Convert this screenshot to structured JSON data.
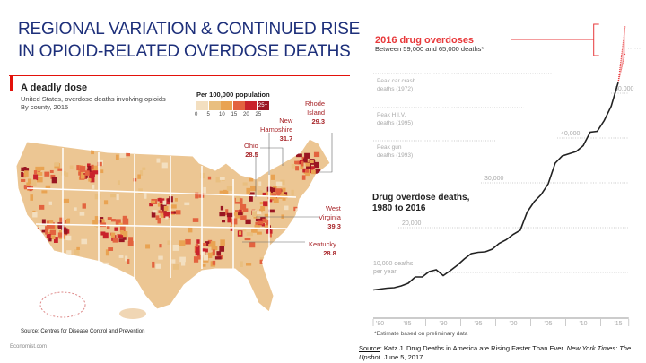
{
  "slide": {
    "title_line1": "REGIONAL VARIATION & CONTINUED RISE",
    "title_line2": "IN OPIOID-RELATED OVERDOSE DEATHS",
    "title_color": "#1d2f7a"
  },
  "map_panel": {
    "title": "A deadly dose",
    "subtitle_line1": "United States, overdose deaths involving opioids",
    "subtitle_line2": "By county, 2015",
    "legend_title": "Per 100,000 population",
    "legend_ticks": [
      "0",
      "5",
      "10",
      "15",
      "20",
      "25"
    ],
    "legend_top_label": "25+",
    "legend_colors": [
      "#f3dfc0",
      "#e9bf80",
      "#e9a352",
      "#e3633f",
      "#c9222b",
      "#9a1622"
    ],
    "callouts": [
      {
        "state_line1": "Rhode",
        "state_line2": "Island",
        "value": "29.3"
      },
      {
        "state_line1": "New",
        "state_line2": "Hampshire",
        "value": "31.7"
      },
      {
        "state_line1": "Ohio",
        "state_line2": "",
        "value": "28.5"
      },
      {
        "state_line1": "West",
        "state_line2": "Virginia",
        "value": "39.3"
      },
      {
        "state_line1": "Kentucky",
        "state_line2": "",
        "value": "28.8"
      }
    ],
    "source": "Source: Centres for Disease Control and Prevention",
    "brand": "Economist.com"
  },
  "nyt_panel": {
    "highlight_title": "2016 drug overdoses",
    "highlight_sub": "Between 59,000 and 65,000 deaths*",
    "main_title_line1": "Drug overdose deaths,",
    "main_title_line2": "1980 to 2016",
    "reference_lines": [
      {
        "label_line1": "Peak car crash",
        "label_line2": "deaths (1972)",
        "value": 54500
      },
      {
        "label_line1": "Peak H.I.V.",
        "label_line2": "deaths (1995)",
        "value": 47000
      },
      {
        "label_line1": "Peak gun",
        "label_line2": "deaths (1993)",
        "value": 39500
      }
    ],
    "footnote": "*Estimate based on preliminary data"
  },
  "chart_data": {
    "type": "line",
    "title": "Drug overdose deaths, 1980 to 2016",
    "x": [
      1980,
      1981,
      1982,
      1983,
      1984,
      1985,
      1986,
      1987,
      1988,
      1989,
      1990,
      1991,
      1992,
      1993,
      1994,
      1995,
      1996,
      1997,
      1998,
      1999,
      2000,
      2001,
      2002,
      2003,
      2004,
      2005,
      2006,
      2007,
      2008,
      2009,
      2010,
      2011,
      2012,
      2013,
      2014,
      2015
    ],
    "values": [
      6100,
      6300,
      6500,
      6600,
      7000,
      7600,
      9000,
      9000,
      10200,
      10600,
      9300,
      10400,
      11600,
      13000,
      14200,
      14500,
      14600,
      15200,
      16500,
      17300,
      18500,
      19400,
      23500,
      25800,
      27400,
      29800,
      34400,
      36000,
      36500,
      37000,
      38300,
      41300,
      41500,
      43900,
      47100,
      52400
    ],
    "estimate_2016": {
      "x": 2016,
      "low": 59000,
      "high": 65000,
      "color": "#e8393b"
    },
    "line_color": "#222222",
    "ylim": [
      0,
      65000
    ],
    "xlim": [
      1980,
      2016
    ],
    "y_ticks": [
      {
        "value": 10000,
        "label_line1": "10,000 deaths",
        "label_line2": "per year"
      },
      {
        "value": 20000,
        "label_line1": "20,000"
      },
      {
        "value": 30000,
        "label_line1": "30,000"
      },
      {
        "value": 40000,
        "label_line1": "40,000"
      },
      {
        "value": 50000,
        "label_line1": "50,000"
      },
      {
        "value": 60000,
        "label_line1": "60,000"
      }
    ],
    "x_ticks": [
      {
        "year": 1980,
        "label": "'80"
      },
      {
        "year": 1985,
        "label": "'85"
      },
      {
        "year": 1990,
        "label": "'90"
      },
      {
        "year": 1995,
        "label": "'95"
      },
      {
        "year": 2000,
        "label": "'00"
      },
      {
        "year": 2005,
        "label": "'05"
      },
      {
        "year": 2010,
        "label": "'10"
      },
      {
        "year": 2015,
        "label": "'15"
      }
    ],
    "grid": "dotted horizontal"
  },
  "citation": {
    "source_label": "Source",
    "text_a": ": Katz J. Drug Deaths in America are Rising Faster Than Ever. ",
    "italic_a": "New York Times: The Upshot",
    "text_b": ". June 5, 2017."
  }
}
